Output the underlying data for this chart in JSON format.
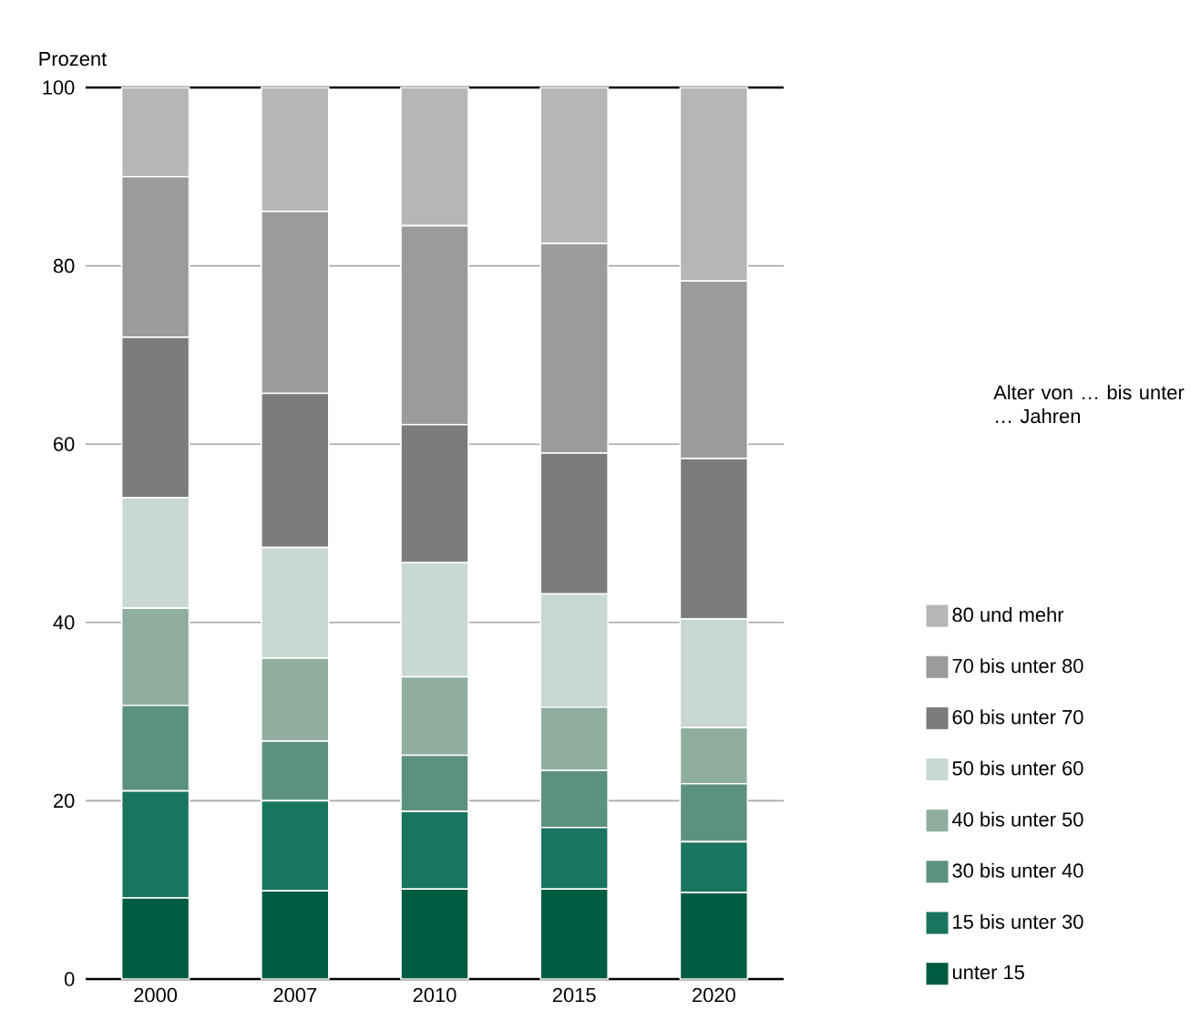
{
  "chart_data": {
    "type": "bar",
    "stacked": true,
    "ylabel": "Prozent",
    "legend_title": "Alter von … bis unter … Jahren",
    "categories": [
      "2000",
      "2007",
      "2010",
      "2015",
      "2020"
    ],
    "series": [
      {
        "name": "unter 15",
        "color": "#005c41",
        "values": [
          9.1,
          9.9,
          10.1,
          10.1,
          9.7
        ]
      },
      {
        "name": "15 bis unter 30",
        "color": "#1a755e",
        "values": [
          12.0,
          10.1,
          8.7,
          6.9,
          5.7
        ]
      },
      {
        "name": "30 bis unter 40",
        "color": "#5c917e",
        "values": [
          9.6,
          6.7,
          6.3,
          6.4,
          6.5
        ]
      },
      {
        "name": "40 bis unter 50",
        "color": "#8fae9f",
        "values": [
          10.9,
          9.3,
          8.8,
          7.1,
          6.3
        ]
      },
      {
        "name": "50 bis unter 60",
        "color": "#c9d8d1",
        "values": [
          12.4,
          12.4,
          12.8,
          12.7,
          12.2
        ]
      },
      {
        "name": "60 bis unter 70",
        "color": "#7b7c7e",
        "values": [
          18.0,
          17.3,
          15.5,
          15.8,
          18.0
        ]
      },
      {
        "name": "70 bis unter 80",
        "color": "#9a9b9d",
        "values": [
          18.0,
          20.4,
          22.3,
          23.5,
          19.9
        ]
      },
      {
        "name": "80 und mehr",
        "color": "#b5b6b8",
        "values": [
          10.0,
          13.9,
          15.5,
          17.5,
          21.7
        ]
      }
    ],
    "ylim": [
      0,
      100
    ],
    "yticks": [
      0,
      20,
      40,
      60,
      80,
      100
    ],
    "grid": "y",
    "legend": "right"
  }
}
